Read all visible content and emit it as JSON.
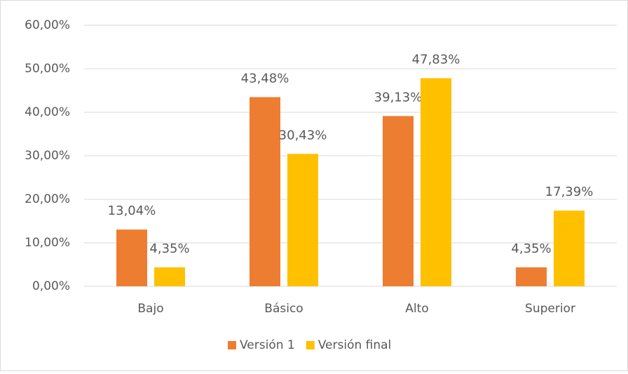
{
  "chart_data": {
    "type": "bar",
    "categories": [
      "Bajo",
      "Básico",
      "Alto",
      "Superior"
    ],
    "series": [
      {
        "name": "Versión 1",
        "color": "#ED7D31",
        "values": [
          13.04,
          43.48,
          39.13,
          4.35
        ],
        "value_labels": [
          "13,04%",
          "43,48%",
          "39,13%",
          "4,35%"
        ]
      },
      {
        "name": "Versión final",
        "color": "#FFC000",
        "values": [
          4.35,
          30.43,
          47.83,
          17.39
        ],
        "value_labels": [
          "4,35%",
          "30,43%",
          "47,83%",
          "17,39%"
        ]
      }
    ],
    "ylim": [
      0,
      60
    ],
    "yticks": [
      {
        "value": 0,
        "label": "0,00%"
      },
      {
        "value": 10,
        "label": "10,00%"
      },
      {
        "value": 20,
        "label": "20,00%"
      },
      {
        "value": 30,
        "label": "30,00%"
      },
      {
        "value": 40,
        "label": "40,00%"
      },
      {
        "value": 50,
        "label": "50,00%"
      },
      {
        "value": 60,
        "label": "60,00%"
      }
    ],
    "grid": true,
    "legend": "bottom"
  }
}
